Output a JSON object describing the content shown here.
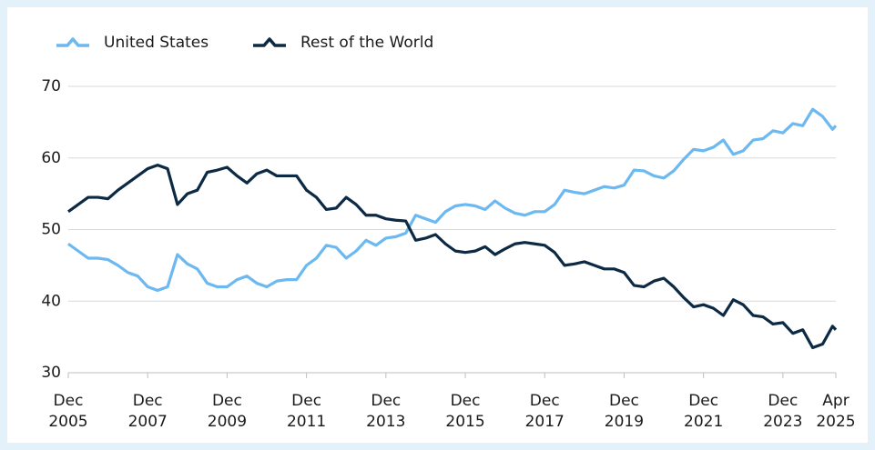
{
  "chart_data": {
    "type": "line",
    "x": [
      "2005-12",
      "2006-03",
      "2006-06",
      "2006-09",
      "2006-12",
      "2007-03",
      "2007-06",
      "2007-09",
      "2007-12",
      "2008-03",
      "2008-06",
      "2008-09",
      "2008-12",
      "2009-03",
      "2009-06",
      "2009-09",
      "2009-12",
      "2010-03",
      "2010-06",
      "2010-09",
      "2010-12",
      "2011-03",
      "2011-06",
      "2011-09",
      "2011-12",
      "2012-03",
      "2012-06",
      "2012-09",
      "2012-12",
      "2013-03",
      "2013-06",
      "2013-09",
      "2013-12",
      "2014-03",
      "2014-06",
      "2014-09",
      "2014-12",
      "2015-03",
      "2015-06",
      "2015-09",
      "2015-12",
      "2016-03",
      "2016-06",
      "2016-09",
      "2016-12",
      "2017-03",
      "2017-06",
      "2017-09",
      "2017-12",
      "2018-03",
      "2018-06",
      "2018-09",
      "2018-12",
      "2019-03",
      "2019-06",
      "2019-09",
      "2019-12",
      "2020-03",
      "2020-06",
      "2020-09",
      "2020-12",
      "2021-03",
      "2021-06",
      "2021-09",
      "2021-12",
      "2022-03",
      "2022-06",
      "2022-09",
      "2022-12",
      "2023-03",
      "2023-06",
      "2023-09",
      "2023-12",
      "2024-03",
      "2024-06",
      "2024-09",
      "2024-12",
      "2025-03",
      "2025-04"
    ],
    "series": [
      {
        "name": "United States",
        "color": "#6cb8f0",
        "values": [
          48,
          47,
          46,
          46,
          45.8,
          45,
          44,
          43.5,
          42,
          41.5,
          42,
          46.5,
          45.2,
          44.5,
          42.5,
          42,
          42,
          43,
          43.5,
          42.5,
          42,
          42.8,
          43,
          43,
          45,
          46,
          47.8,
          47.5,
          46,
          47,
          48.5,
          47.8,
          48.8,
          49,
          49.5,
          52,
          51.5,
          51,
          52.5,
          53.3,
          53.5,
          53.3,
          52.8,
          54,
          53,
          52.3,
          52,
          52.5,
          52.5,
          53.5,
          55.5,
          55.2,
          55,
          55.5,
          56,
          55.8,
          56.2,
          58.3,
          58.2,
          57.5,
          57.2,
          58.2,
          59.8,
          61.2,
          61,
          61.5,
          62.5,
          60.5,
          61,
          62.5,
          62.7,
          63.8,
          63.5,
          64.8,
          64.5,
          66.8,
          65.8,
          64,
          64.5
        ]
      },
      {
        "name": "Rest of the World",
        "color": "#0d2a45",
        "values": [
          52.5,
          53.5,
          54.5,
          54.5,
          54.3,
          55.5,
          56.5,
          57.5,
          58.5,
          59,
          58.5,
          53.5,
          55,
          55.5,
          58,
          58.3,
          58.7,
          57.5,
          56.5,
          57.8,
          58.3,
          57.5,
          57.5,
          57.5,
          55.5,
          54.5,
          52.8,
          53,
          54.5,
          53.5,
          52,
          52,
          51.5,
          51.3,
          51.2,
          48.5,
          48.8,
          49.3,
          48,
          47,
          46.8,
          47,
          47.6,
          46.5,
          47.3,
          48,
          48.2,
          48,
          47.8,
          46.8,
          45,
          45.2,
          45.5,
          45,
          44.5,
          44.5,
          44,
          42.2,
          42,
          42.8,
          43.2,
          42,
          40.5,
          39.2,
          39.5,
          39,
          38,
          40.2,
          39.5,
          38,
          37.8,
          36.8,
          37,
          35.5,
          36,
          33.5,
          34,
          36.5,
          36
        ]
      }
    ],
    "xlim": [
      "2005-12",
      "2025-04"
    ],
    "xticks": [
      {
        "value": "2005-12",
        "label": "Dec 2005"
      },
      {
        "value": "2007-12",
        "label": "Dec 2007"
      },
      {
        "value": "2009-12",
        "label": "Dec 2009"
      },
      {
        "value": "2011-12",
        "label": "Dec 2011"
      },
      {
        "value": "2013-12",
        "label": "Dec 2013"
      },
      {
        "value": "2015-12",
        "label": "Dec 2015"
      },
      {
        "value": "2017-12",
        "label": "Dec 2017"
      },
      {
        "value": "2019-12",
        "label": "Dec 2019"
      },
      {
        "value": "2021-12",
        "label": "Dec 2021"
      },
      {
        "value": "2023-12",
        "label": "Dec 2023"
      },
      {
        "value": "2025-04",
        "label": "Apr 2025"
      }
    ],
    "ylim": [
      30,
      70
    ],
    "yticks": [
      30,
      40,
      50,
      60,
      70
    ],
    "grid": true,
    "legend": "top"
  }
}
